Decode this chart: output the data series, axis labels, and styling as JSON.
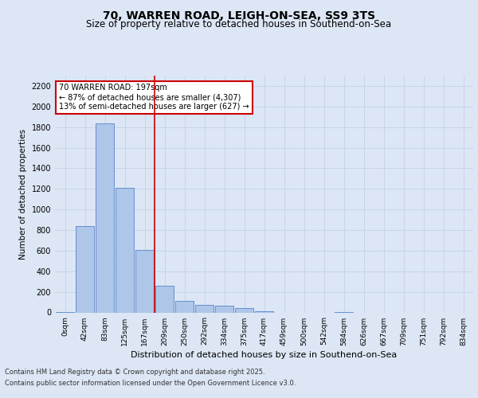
{
  "title_line1": "70, WARREN ROAD, LEIGH-ON-SEA, SS9 3TS",
  "title_line2": "Size of property relative to detached houses in Southend-on-Sea",
  "xlabel": "Distribution of detached houses by size in Southend-on-Sea",
  "ylabel": "Number of detached properties",
  "annotation_title": "70 WARREN ROAD: 197sqm",
  "annotation_line1": "← 87% of detached houses are smaller (4,307)",
  "annotation_line2": "13% of semi-detached houses are larger (627) →",
  "bar_labels": [
    "0sqm",
    "42sqm",
    "83sqm",
    "125sqm",
    "167sqm",
    "209sqm",
    "250sqm",
    "292sqm",
    "334sqm",
    "375sqm",
    "417sqm",
    "459sqm",
    "500sqm",
    "542sqm",
    "584sqm",
    "626sqm",
    "667sqm",
    "709sqm",
    "751sqm",
    "792sqm",
    "834sqm"
  ],
  "bar_values": [
    5,
    840,
    1840,
    1210,
    610,
    260,
    110,
    75,
    65,
    40,
    10,
    0,
    0,
    0,
    5,
    0,
    0,
    0,
    0,
    0,
    0
  ],
  "bar_color": "#aec6e8",
  "bar_edge_color": "#4472c4",
  "vline_color": "#cc0000",
  "ylim": [
    0,
    2300
  ],
  "yticks": [
    0,
    200,
    400,
    600,
    800,
    1000,
    1200,
    1400,
    1600,
    1800,
    2000,
    2200
  ],
  "grid_color": "#c8d4e8",
  "background_color": "#dce6f5",
  "plot_bg_color": "#dce6f5",
  "footer_line1": "Contains HM Land Registry data © Crown copyright and database right 2025.",
  "footer_line2": "Contains public sector information licensed under the Open Government Licence v3.0.",
  "annotation_box_color": "#ffffff",
  "annotation_box_edge": "#cc0000",
  "figsize": [
    6.0,
    5.0
  ],
  "dpi": 100
}
